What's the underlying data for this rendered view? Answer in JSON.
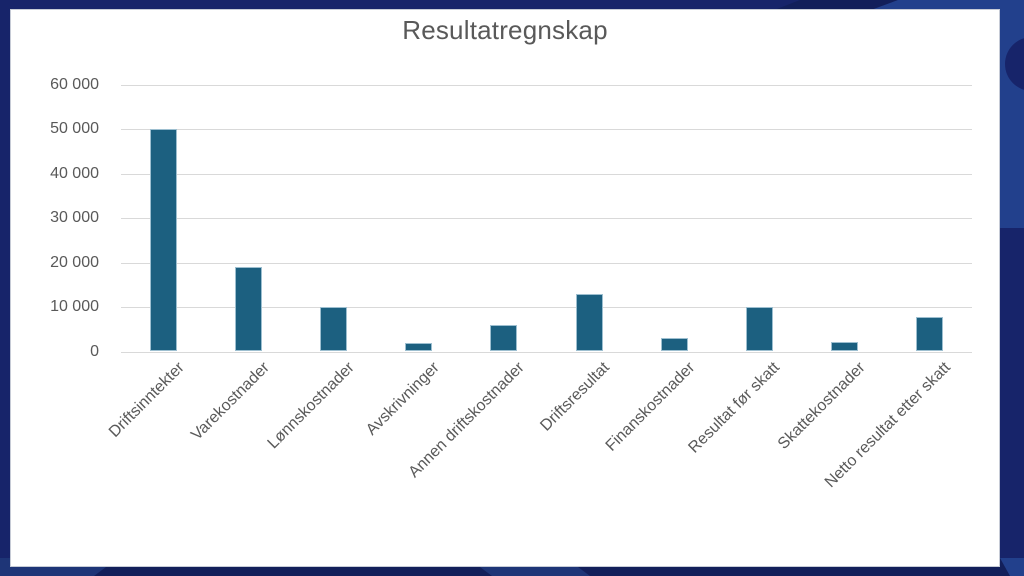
{
  "chart_data": {
    "type": "bar",
    "title": "Resultatregnskap",
    "categories": [
      "Driftsinntekter",
      "Varekostnader",
      "Lønnskostnader",
      "Avskrivninger",
      "Annen driftskostnader",
      "Driftsresultat",
      "Finanskostnader",
      "Resultat før skatt",
      "Skattekostnader",
      "Netto resultat etter skatt"
    ],
    "values": [
      50000,
      19000,
      10000,
      2000,
      6000,
      13000,
      3000,
      10000,
      2200,
      7800
    ],
    "xlabel": "",
    "ylabel": "",
    "ylim": [
      0,
      60000
    ],
    "ytick_step": 10000,
    "ytick_labels": [
      "0",
      "10 000",
      "20 000",
      "30 000",
      "40 000",
      "50 000",
      "60 000"
    ],
    "grid": true,
    "legend": false,
    "x_label_rotation_deg": 45,
    "bar_color": "#1c6080",
    "bar_border_color": "#9dbfd0",
    "gridline_color": "#d9d9d9",
    "label_color": "#595959",
    "title_color": "#595959"
  },
  "background": {
    "base_color": "#17246a",
    "accent_light": "#22408c",
    "accent_mid": "#1e3577",
    "accent_dark": "#121f5a",
    "panel_color": "#ffffff"
  }
}
